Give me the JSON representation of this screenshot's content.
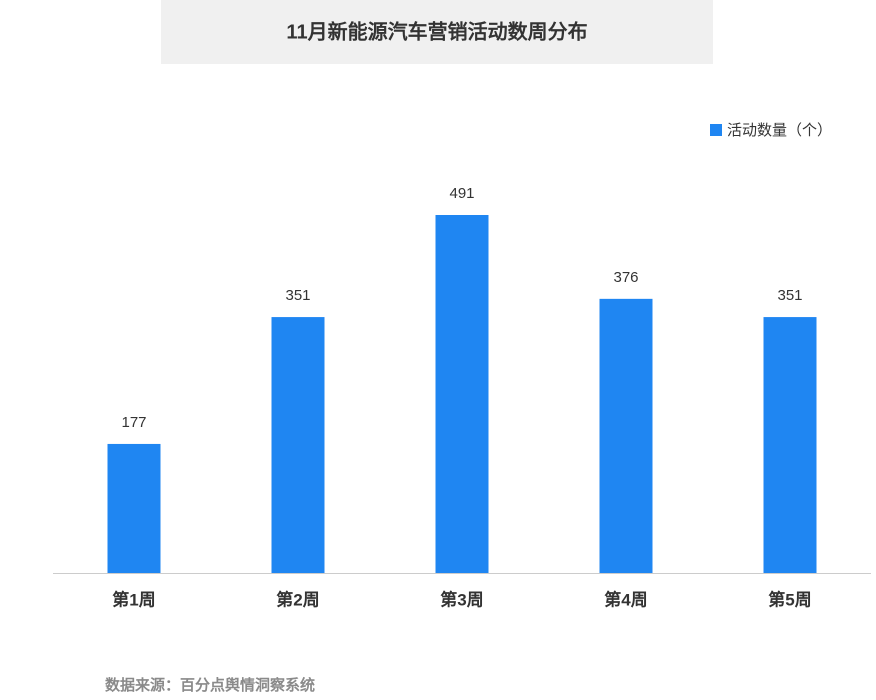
{
  "chart_data": {
    "type": "bar",
    "title": "11月新能源汽车营销活动数周分布",
    "categories": [
      "第1周",
      "第2周",
      "第3周",
      "第4周",
      "第5周"
    ],
    "series": [
      {
        "name": "活动数量（个）",
        "color": "#1f86f2",
        "values": [
          177,
          351,
          491,
          376,
          351
        ]
      }
    ],
    "legend": "top-right",
    "source": "数据来源：百分点舆情洞察系统"
  }
}
